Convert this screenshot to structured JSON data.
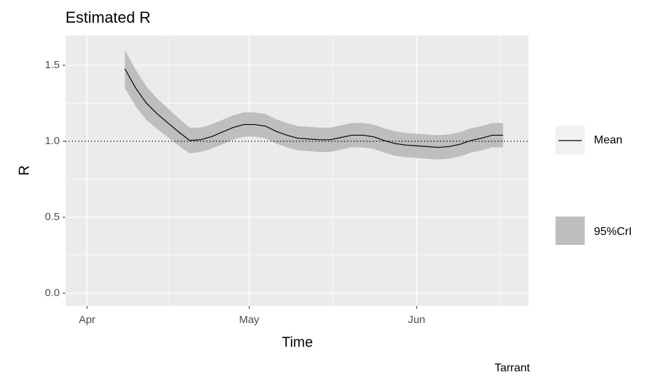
{
  "chart_data": {
    "type": "line",
    "title": "Estimated R",
    "x_label": "Time",
    "y_label": "R",
    "caption": "Tarrant",
    "x": [
      7,
      9,
      11,
      13,
      15,
      17,
      19,
      21,
      23,
      25,
      27,
      29,
      31,
      33,
      35,
      37,
      39,
      41,
      43,
      45,
      47,
      49,
      51,
      53,
      55,
      57,
      59,
      61,
      63,
      65,
      67,
      69,
      71,
      73,
      75,
      77
    ],
    "series": [
      {
        "name": "Mean",
        "color": "#000000",
        "values": [
          1.477,
          1.35,
          1.25,
          1.18,
          1.12,
          1.06,
          1.005,
          1.01,
          1.03,
          1.06,
          1.09,
          1.11,
          1.11,
          1.1,
          1.065,
          1.04,
          1.02,
          1.015,
          1.01,
          1.01,
          1.025,
          1.04,
          1.04,
          1.03,
          1.005,
          0.985,
          0.975,
          0.97,
          0.965,
          0.96,
          0.965,
          0.98,
          1.005,
          1.02,
          1.04,
          1.04
        ]
      }
    ],
    "band": {
      "name": "95%CrI",
      "color": "#bebebe",
      "lower": [
        1.35,
        1.23,
        1.14,
        1.08,
        1.025,
        0.97,
        0.92,
        0.93,
        0.95,
        0.98,
        1.01,
        1.03,
        1.03,
        1.02,
        0.985,
        0.96,
        0.94,
        0.935,
        0.93,
        0.93,
        0.945,
        0.96,
        0.96,
        0.95,
        0.925,
        0.905,
        0.895,
        0.89,
        0.885,
        0.88,
        0.885,
        0.9,
        0.925,
        0.94,
        0.96,
        0.96
      ],
      "upper": [
        1.6,
        1.47,
        1.36,
        1.28,
        1.215,
        1.15,
        1.09,
        1.09,
        1.11,
        1.14,
        1.17,
        1.19,
        1.19,
        1.18,
        1.145,
        1.12,
        1.1,
        1.095,
        1.09,
        1.09,
        1.105,
        1.12,
        1.12,
        1.11,
        1.085,
        1.065,
        1.055,
        1.05,
        1.045,
        1.04,
        1.045,
        1.06,
        1.085,
        1.1,
        1.12,
        1.12
      ]
    },
    "hline": 1,
    "xlim": [
      -4,
      81.7
    ],
    "ylim": [
      -0.084,
      1.696
    ],
    "xticks": [
      {
        "value": 0,
        "label": "Apr"
      },
      {
        "value": 30,
        "label": "May"
      },
      {
        "value": 61,
        "label": "Jun"
      }
    ],
    "yticks": [
      {
        "value": 0,
        "label": "0.0"
      },
      {
        "value": 0.5,
        "label": "0.5"
      },
      {
        "value": 1,
        "label": "1.0"
      },
      {
        "value": 1.5,
        "label": "1.5"
      }
    ],
    "grid": true
  }
}
